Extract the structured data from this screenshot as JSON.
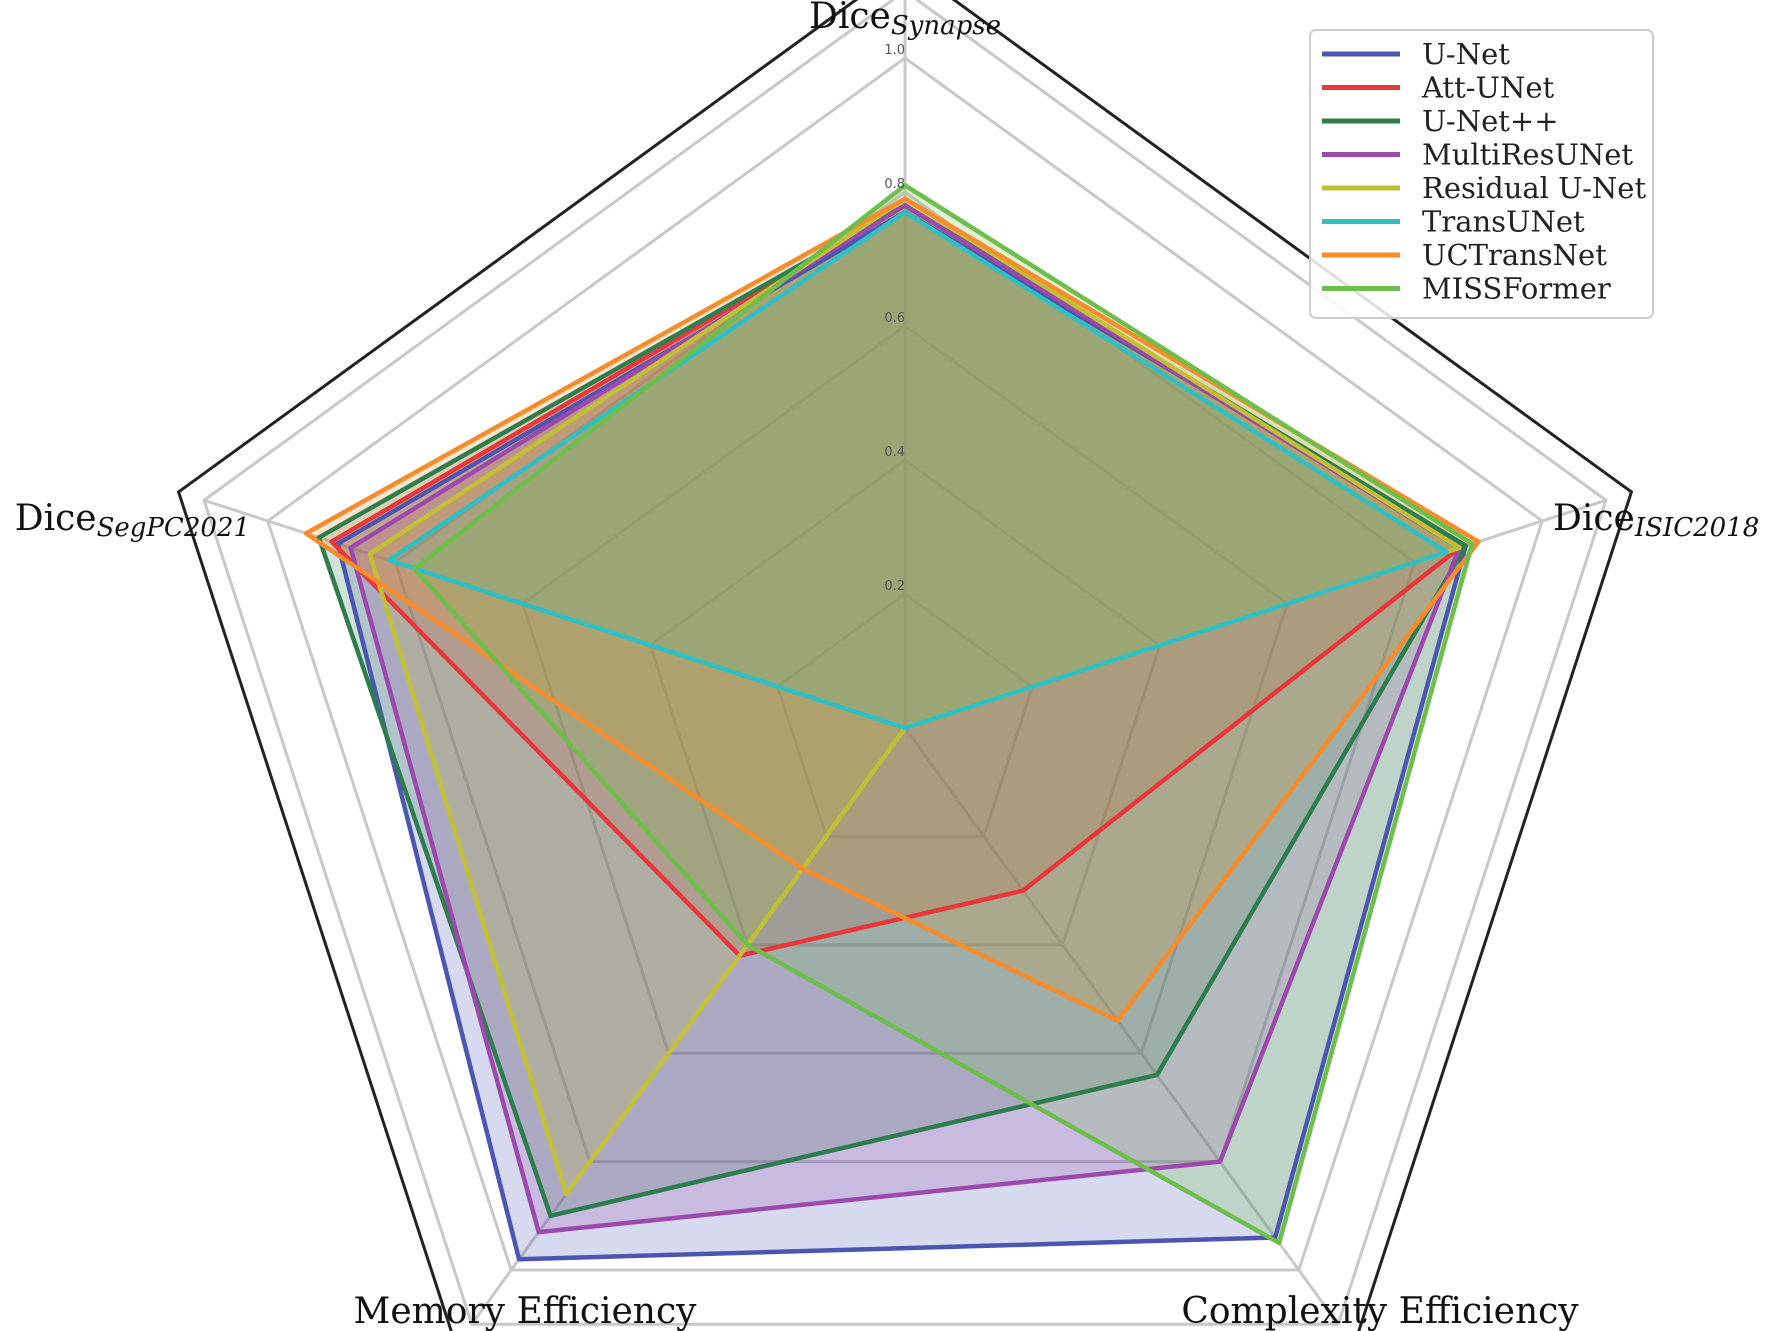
{
  "chart_data": {
    "type": "radar",
    "axes": [
      {
        "main": "Dice",
        "sub": "Synapse"
      },
      {
        "main": "Dice",
        "sub": "ISIC2018"
      },
      {
        "main": "Complexity Efficiency",
        "sub": ""
      },
      {
        "main": "Memory Efficiency",
        "sub": ""
      },
      {
        "main": "Dice",
        "sub": "SegPC2021"
      }
    ],
    "rlim": [
      0,
      1.0
    ],
    "ticks": [
      "0.2",
      "0.4",
      "0.6",
      "0.8",
      "1.0"
    ],
    "tick_values": [
      0.2,
      0.4,
      0.6,
      0.8,
      1.0
    ],
    "legend_position": "top-right",
    "series": [
      {
        "name": "U-Net",
        "color": "#4a56b0",
        "values": [
          0.77,
          0.88,
          0.94,
          0.98,
          0.89
        ]
      },
      {
        "name": "Att-UNet",
        "color": "#e8363a",
        "values": [
          0.78,
          0.87,
          0.3,
          0.42,
          0.9
        ]
      },
      {
        "name": "U-Net++",
        "color": "#2e7d4f",
        "values": [
          0.78,
          0.88,
          0.64,
          0.9,
          0.92
        ]
      },
      {
        "name": "MultiResUNet",
        "color": "#9c49ad",
        "values": [
          0.78,
          0.87,
          0.8,
          0.93,
          0.87
        ]
      },
      {
        "name": "Residual U-Net",
        "color": "#c1c034",
        "values": [
          0.79,
          0.87,
          0.0,
          0.86,
          0.84
        ]
      },
      {
        "name": "TransUNet",
        "color": "#2ec0c4",
        "values": [
          0.77,
          0.85,
          0.0,
          0.0,
          0.81
        ]
      },
      {
        "name": "UCTransNet",
        "color": "#f68c2b",
        "values": [
          0.79,
          0.9,
          0.54,
          0.26,
          0.94
        ]
      },
      {
        "name": "MISSFormer",
        "color": "#6dbe4a",
        "values": [
          0.81,
          0.89,
          0.95,
          0.4,
          0.77
        ]
      }
    ]
  }
}
